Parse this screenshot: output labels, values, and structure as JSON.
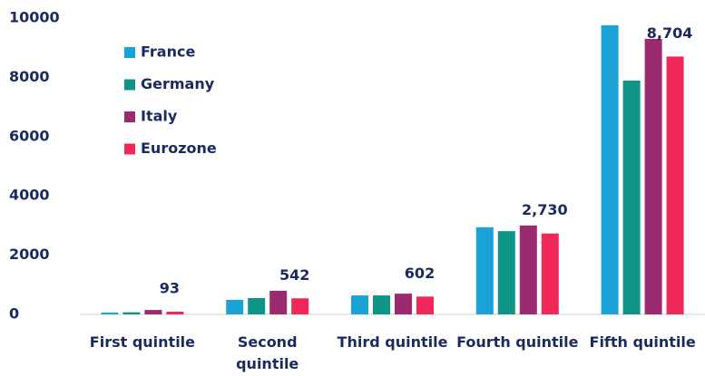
{
  "chart_data": {
    "type": "bar",
    "categories": [
      "First quintile",
      "Second quintile",
      "Third quintile",
      "Fourth quintile",
      "Fifth quintile"
    ],
    "series": [
      {
        "name": "France",
        "color": "#1ba3d8",
        "values": [
          60,
          490,
          640,
          2940,
          9760
        ]
      },
      {
        "name": "Germany",
        "color": "#0f9488",
        "values": [
          70,
          550,
          640,
          2810,
          7890
        ]
      },
      {
        "name": "Italy",
        "color": "#9b2a6f",
        "values": [
          150,
          795,
          700,
          3000,
          9300
        ]
      },
      {
        "name": "Eurozone",
        "color": "#f0285a",
        "values": [
          93,
          542,
          602,
          2730,
          8704
        ],
        "value_labels": [
          "93",
          "542",
          "602",
          "2,730",
          "8,704"
        ]
      }
    ],
    "ylim": [
      0,
      10000
    ],
    "yticks": [
      0,
      2000,
      4000,
      6000,
      8000,
      10000
    ],
    "legend": "upper left"
  }
}
